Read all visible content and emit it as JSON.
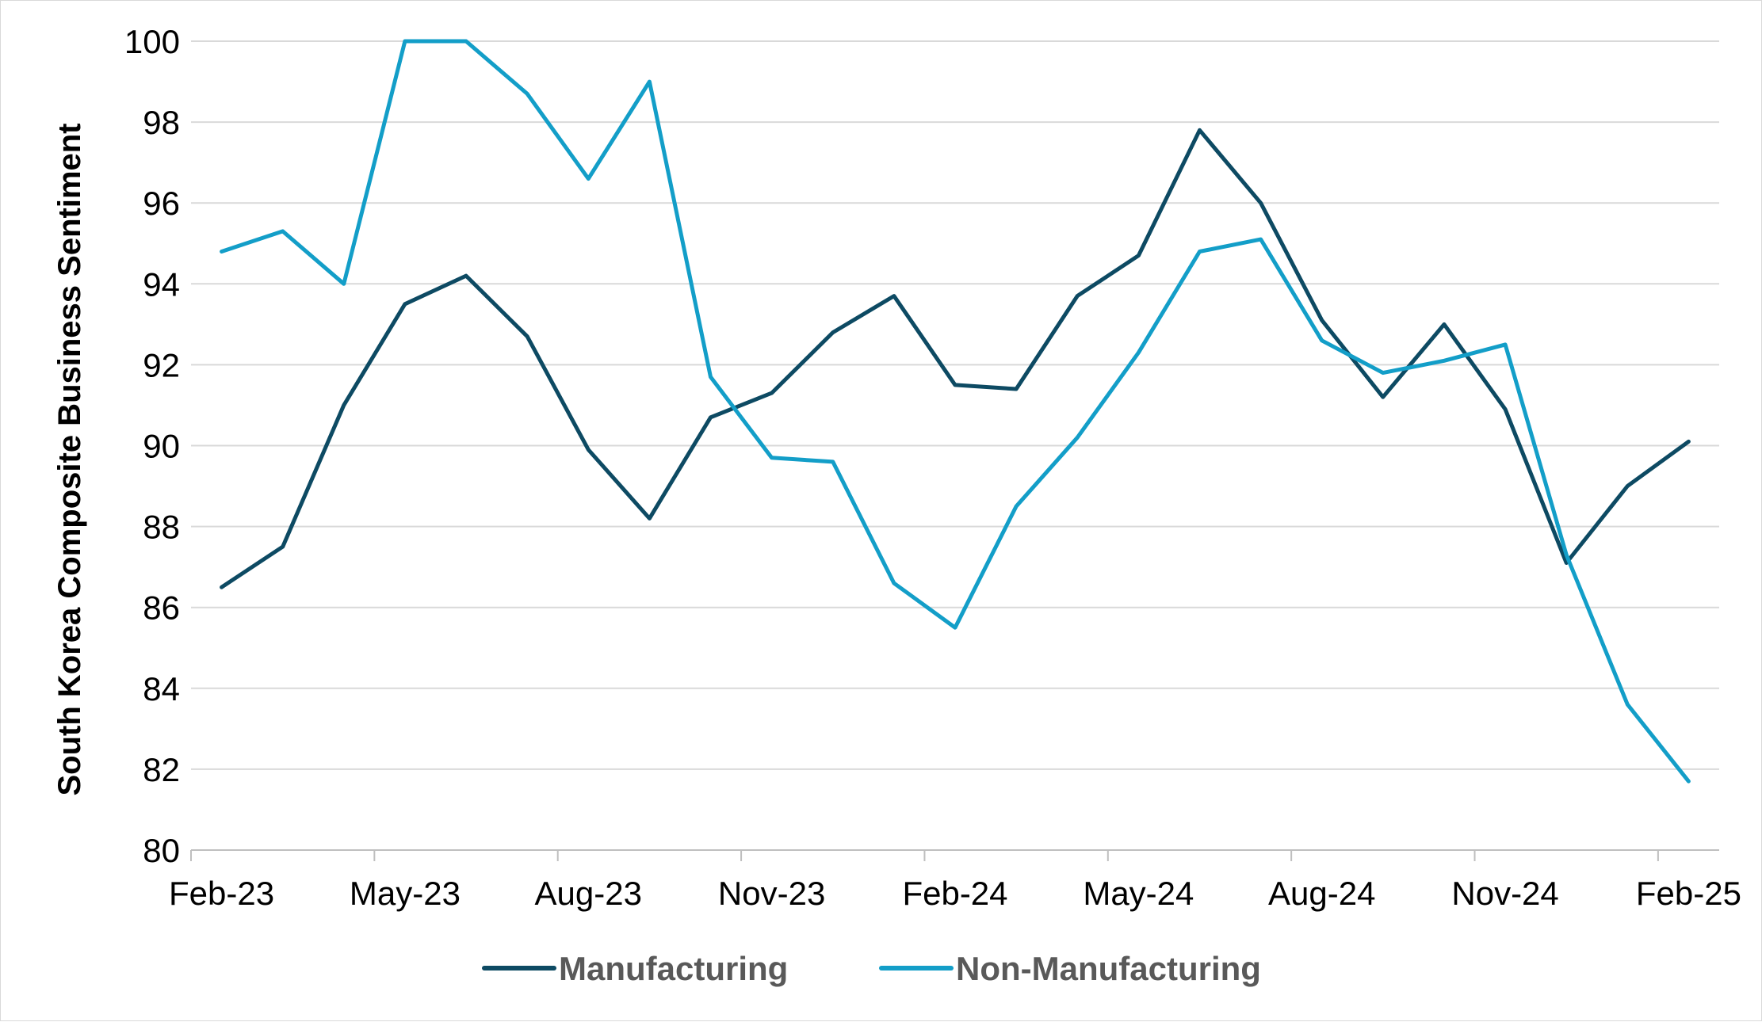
{
  "chart_data": {
    "type": "line",
    "title": "",
    "xlabel": "",
    "ylabel": "South Korea Composite Business Sentiment",
    "ylim": [
      80,
      100
    ],
    "yticks": [
      "80",
      "82",
      "84",
      "86",
      "88",
      "90",
      "92",
      "94",
      "96",
      "98",
      "100"
    ],
    "x": [
      "Feb-23",
      "Mar-23",
      "Apr-23",
      "May-23",
      "Jun-23",
      "Jul-23",
      "Aug-23",
      "Sep-23",
      "Oct-23",
      "Nov-23",
      "Dec-23",
      "Jan-24",
      "Feb-24",
      "Mar-24",
      "Apr-24",
      "May-24",
      "Jun-24",
      "Jul-24",
      "Aug-24",
      "Sep-24",
      "Oct-24",
      "Nov-24",
      "Dec-24",
      "Jan-25",
      "Feb-25"
    ],
    "xtick_labels": [
      "Feb-23",
      "May-23",
      "Aug-23",
      "Nov-23",
      "Feb-24",
      "May-24",
      "Aug-24",
      "Nov-24",
      "Feb-25"
    ],
    "grid": true,
    "legend_position": "bottom",
    "series": [
      {
        "name": "Manufacturing",
        "color": "#0d4a63",
        "values": [
          86.5,
          87.5,
          91.0,
          93.5,
          94.2,
          92.7,
          89.9,
          88.2,
          90.7,
          91.3,
          92.8,
          93.7,
          91.5,
          91.4,
          93.7,
          94.7,
          97.8,
          96.0,
          93.1,
          91.2,
          93.0,
          90.9,
          87.1,
          89.0,
          90.1
        ]
      },
      {
        "name": "Non-Manufacturing",
        "color": "#139ec8",
        "values": [
          94.8,
          95.3,
          94.0,
          100.0,
          100.0,
          98.7,
          96.6,
          99.0,
          91.7,
          89.7,
          89.6,
          86.6,
          85.5,
          88.5,
          90.2,
          92.3,
          94.8,
          95.1,
          92.6,
          91.8,
          92.1,
          92.5,
          87.3,
          83.6,
          81.7
        ]
      }
    ]
  }
}
